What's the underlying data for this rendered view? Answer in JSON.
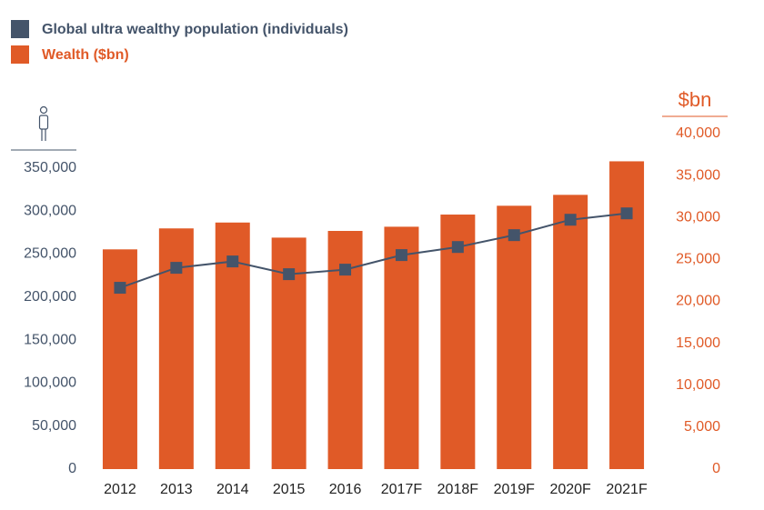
{
  "chart_data": {
    "type": "bar-line",
    "categories": [
      "2012",
      "2013",
      "2014",
      "2015",
      "2016",
      "2017F",
      "2018F",
      "2019F",
      "2020F",
      "2021F"
    ],
    "series": [
      {
        "name": "Global ultra wealthy population (individuals)",
        "type": "line",
        "color": "#44546a",
        "values": [
          210800,
          234000,
          241400,
          226600,
          231900,
          248800,
          258200,
          272000,
          289900,
          297300
        ]
      },
      {
        "name": "Wealth ($bn)",
        "type": "bar",
        "axis": "y2",
        "color": "#e05a27",
        "values": [
          26200,
          28700,
          29400,
          27600,
          28400,
          28900,
          30350,
          31400,
          32700,
          36700
        ]
      }
    ],
    "y2label": "$bn",
    "ylim": [
      0,
      390000
    ],
    "yticks": [
      0,
      {
        "value": 50000,
        "label": "50,000"
      },
      {
        "value": 100000,
        "label": "100,000"
      },
      {
        "value": 150000,
        "label": "150,000"
      },
      {
        "value": 200000,
        "label": "200,000"
      },
      {
        "value": 250000,
        "label": "250,000"
      },
      {
        "value": 300000,
        "label": "300,000"
      },
      {
        "value": 350000,
        "label": "350,000"
      }
    ],
    "y2lim": [
      0,
      40000
    ],
    "y2ticks": [
      0,
      {
        "value": 5000,
        "label": "5,000"
      },
      {
        "value": 10000,
        "label": "10,000"
      },
      {
        "value": 15000,
        "label": "15,000"
      },
      {
        "value": 20000,
        "label": "20,000"
      },
      {
        "value": 25000,
        "label": "25,000"
      },
      {
        "value": 30000,
        "label": "30,000"
      },
      {
        "value": 35000,
        "label": "35,000"
      },
      {
        "value": 40000,
        "label": "40,000"
      }
    ]
  }
}
